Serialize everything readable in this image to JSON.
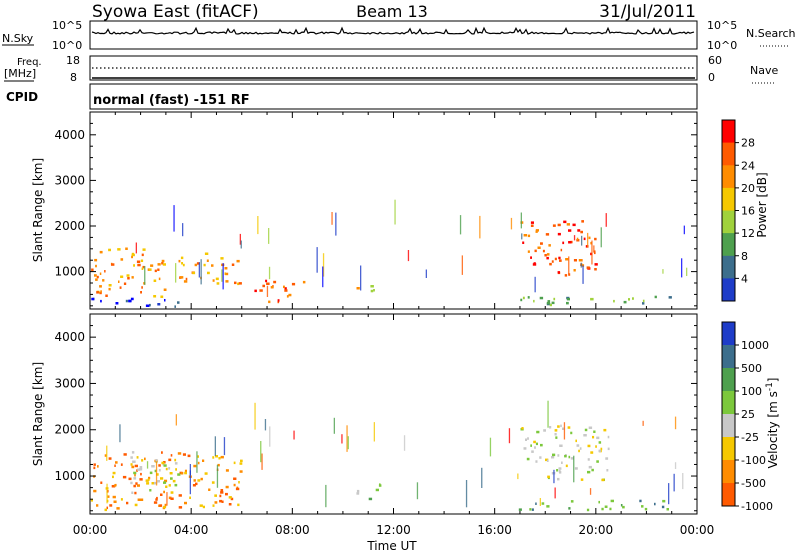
{
  "header": {
    "station": "Syowa East (fitACF)",
    "beam": "Beam 13",
    "date": "31/Jul/2011"
  },
  "nsky_panel": {
    "left_label": "N.Sky",
    "right_label": "N.Search",
    "left_ticks": [
      "10^5",
      "10^0"
    ],
    "right_ticks": [
      "10^5",
      "10^0"
    ]
  },
  "freq_panel": {
    "left_label_1": "Freq.",
    "left_label_2": "[MHz]",
    "right_label": "Nave",
    "left_ticks": [
      "18",
      "8"
    ],
    "right_ticks": [
      "60",
      "0"
    ]
  },
  "cpid_panel": {
    "label": "CPID",
    "text": "normal (fast) -151 RF"
  },
  "chart_data": [
    {
      "type": "heatmap",
      "name": "power",
      "ylabel": "Slant Range [km]",
      "ylim": [
        180,
        4500
      ],
      "yticks": [
        1000,
        2000,
        3000,
        4000
      ],
      "xlim": [
        0,
        24
      ],
      "colorbar": {
        "label": "Power [dB]",
        "ticks": [
          "28",
          "24",
          "20",
          "16",
          "12",
          "8",
          "4"
        ],
        "colors": [
          "#ff0000",
          "#ff5a00",
          "#ff8c00",
          "#f5c800",
          "#a0d23c",
          "#4ea04e",
          "#3c6e8c",
          "#1e3cc8",
          "#0000ff"
        ]
      },
      "echo_bands": [
        {
          "t": [
            0.0,
            3.5
          ],
          "range": [
            200,
            420
          ],
          "level": 7
        },
        {
          "t": [
            0.0,
            3.0
          ],
          "range": [
            420,
            1500
          ],
          "level": 2
        },
        {
          "t": [
            3.5,
            6.0
          ],
          "range": [
            700,
            1400
          ],
          "level": 2
        },
        {
          "t": [
            6.5,
            8.5
          ],
          "range": [
            300,
            800
          ],
          "level": 1
        },
        {
          "t": [
            10.5,
            11.2
          ],
          "range": [
            500,
            800
          ],
          "level": 3
        },
        {
          "t": [
            17.0,
            20.0
          ],
          "range": [
            900,
            2100
          ],
          "level": 1
        },
        {
          "t": [
            16.8,
            23.0
          ],
          "range": [
            250,
            450
          ],
          "level": 5
        }
      ]
    },
    {
      "type": "heatmap",
      "name": "velocity",
      "ylabel": "Slant Range [km]",
      "ylim": [
        180,
        4500
      ],
      "yticks": [
        1000,
        2000,
        3000,
        4000
      ],
      "xlim": [
        0,
        24
      ],
      "xticks": [
        "00:00",
        "04:00",
        "08:00",
        "12:00",
        "16:00",
        "20:00",
        "00:00"
      ],
      "xlabel": "Time UT",
      "colorbar": {
        "label": "Velocity [m s",
        "label_sup": "-1",
        "label_end": "]",
        "ticks": [
          "1000",
          "500",
          "100",
          "25",
          "-25",
          "-100",
          "-500",
          "-1000"
        ],
        "colors": [
          "#1e3cc8",
          "#3c6e8c",
          "#4ea04e",
          "#7cc83c",
          "#c8c8c8",
          "#f5c800",
          "#ff8c00",
          "#ff5a00",
          "#ff0000"
        ]
      },
      "echo_bands": [
        {
          "t": [
            0.0,
            6.0
          ],
          "range": [
            250,
            1500
          ],
          "level": 6
        },
        {
          "t": [
            1.5,
            3.5
          ],
          "range": [
            600,
            1500
          ],
          "level": 4
        },
        {
          "t": [
            10.5,
            11.5
          ],
          "range": [
            450,
            800
          ],
          "level": 3
        },
        {
          "t": [
            17.0,
            20.5
          ],
          "range": [
            900,
            2100
          ],
          "level": 4
        },
        {
          "t": [
            16.8,
            23.0
          ],
          "range": [
            250,
            450
          ],
          "level": 2
        }
      ]
    }
  ]
}
